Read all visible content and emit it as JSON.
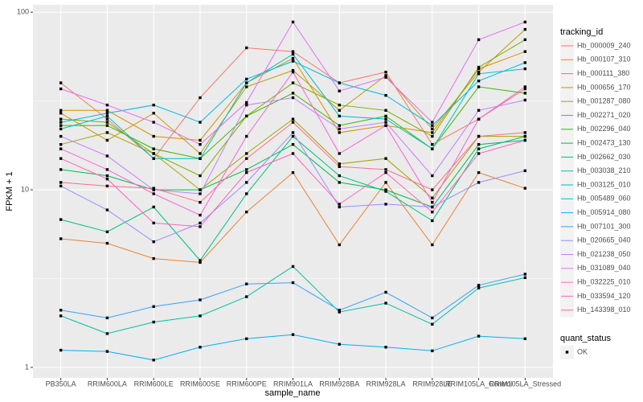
{
  "chart_data": {
    "type": "line",
    "x_label": "sample_name",
    "y_label": "FPKM + 1",
    "categories": [
      "PB350LA",
      "RRIM600LA",
      "RRIM600LE",
      "RRIM600SE",
      "RRIM600PE",
      "RRIM901LA",
      "RRIM928BA",
      "RRIM928LA",
      "RRIM928LE",
      "RRIM105LA_Control",
      "RRIM105LA_Stressed"
    ],
    "ylim": [
      0.873,
      110
    ],
    "yticks": [
      1,
      10,
      100
    ],
    "log_scale": true,
    "grid": true,
    "legend_title": "tracking_id",
    "shape_legend": {
      "title": "quant_status",
      "labels": [
        "OK"
      ]
    },
    "series": [
      {
        "name": "Hb_000009_240",
        "color": "#F8766D",
        "values": [
          40,
          25,
          15,
          33,
          63,
          60,
          40,
          46,
          18,
          25,
          37
        ]
      },
      {
        "name": "Hb_000107_310",
        "color": "#EA8331",
        "values": [
          5.3,
          5.0,
          4.1,
          3.9,
          7.5,
          12.5,
          4.9,
          11,
          4.9,
          12.5,
          10.2
        ]
      },
      {
        "name": "Hb_000111_380",
        "color": "#D89000",
        "values": [
          28,
          28,
          20,
          19,
          40,
          55,
          21,
          23,
          21,
          48,
          60
        ]
      },
      {
        "name": "Hb_000656_170",
        "color": "#C09B00",
        "values": [
          27,
          19,
          27,
          16,
          38,
          47,
          28,
          44,
          22,
          46,
          80
        ]
      },
      {
        "name": "Hb_001287_080",
        "color": "#A3A500",
        "values": [
          18,
          21,
          16,
          10,
          16,
          25,
          14,
          15,
          9,
          20,
          20
        ]
      },
      {
        "name": "Hb_002271_020",
        "color": "#7CAE00",
        "values": [
          25,
          24,
          16,
          12,
          26,
          40,
          30,
          28,
          20,
          49,
          70
        ]
      },
      {
        "name": "Hb_002296_040",
        "color": "#39B600",
        "values": [
          23,
          23,
          17,
          15,
          26,
          35,
          23,
          26,
          17,
          38,
          35
        ]
      },
      {
        "name": "Hb_002473_130",
        "color": "#00BB4E",
        "values": [
          13,
          12,
          10,
          10,
          13,
          18,
          11,
          10,
          8,
          18,
          19
        ]
      },
      {
        "name": "Hb_002662_030",
        "color": "#00BF7D",
        "values": [
          6.8,
          5.8,
          8,
          4,
          9.5,
          20,
          12,
          9.8,
          6.7,
          17,
          20
        ]
      },
      {
        "name": "Hb_003038_210",
        "color": "#00C1A3",
        "values": [
          1.95,
          1.55,
          1.8,
          1.95,
          2.5,
          3.7,
          2.05,
          2.3,
          1.75,
          2.8,
          3.2
        ]
      },
      {
        "name": "Hb_003125_010",
        "color": "#00BFC4",
        "values": [
          22,
          26,
          15,
          15,
          40,
          58,
          26,
          25,
          17,
          45,
          48
        ]
      },
      {
        "name": "Hb_005489_060",
        "color": "#00BAE0",
        "values": [
          24,
          27,
          30,
          24,
          42,
          53,
          40,
          34,
          23,
          41,
          52
        ]
      },
      {
        "name": "Hb_005914_080",
        "color": "#00B0F6",
        "values": [
          1.25,
          1.23,
          1.1,
          1.3,
          1.45,
          1.53,
          1.35,
          1.3,
          1.24,
          1.5,
          1.45
        ]
      },
      {
        "name": "Hb_007101_300",
        "color": "#35A2FF",
        "values": [
          2.1,
          1.9,
          2.2,
          2.4,
          2.95,
          3.0,
          2.1,
          2.65,
          1.9,
          2.9,
          3.35
        ]
      },
      {
        "name": "Hb_020665_040",
        "color": "#9590FF",
        "values": [
          10.5,
          7.7,
          5.1,
          6.5,
          11,
          21,
          8,
          8.3,
          8,
          11,
          12.8
        ]
      },
      {
        "name": "Hb_021238_050",
        "color": "#C77CFF",
        "values": [
          20,
          15.5,
          10,
          9.5,
          30,
          33,
          22,
          24,
          12,
          28,
          32
        ]
      },
      {
        "name": "Hb_031089_040",
        "color": "#E76BF3",
        "values": [
          37,
          30,
          24,
          18,
          31,
          88,
          36,
          43,
          24,
          70,
          88
        ]
      },
      {
        "name": "Hb_032225_010",
        "color": "#FA62DB",
        "values": [
          17,
          13,
          9.5,
          7.2,
          20,
          46,
          16,
          23,
          8.5,
          25,
          38
        ]
      },
      {
        "name": "Hb_033594_120",
        "color": "#FF62BC",
        "values": [
          15,
          11.5,
          6.5,
          6.2,
          12.5,
          16,
          8.3,
          12.5,
          7.5,
          16,
          19
        ]
      },
      {
        "name": "Hb_143398_010",
        "color": "#FF6C91",
        "values": [
          11,
          10.5,
          10.2,
          8.5,
          15,
          24,
          13.5,
          13,
          10,
          20,
          21
        ]
      }
    ]
  }
}
